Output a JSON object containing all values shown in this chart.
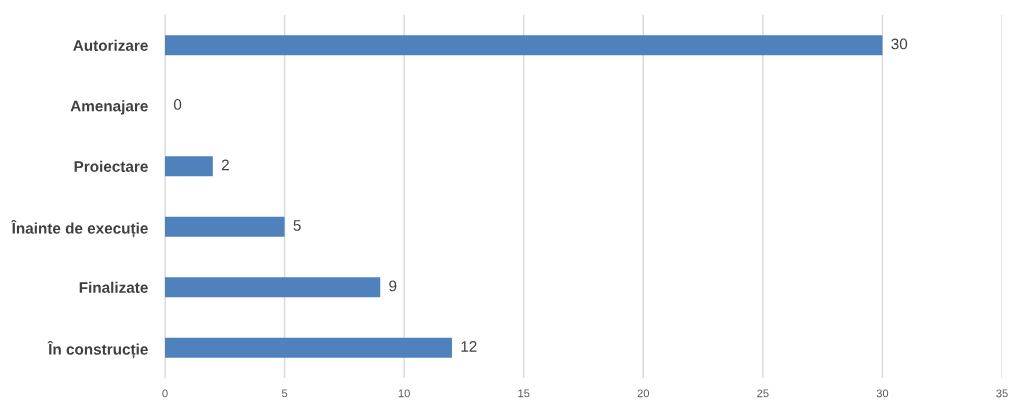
{
  "chart_data": {
    "type": "bar",
    "orientation": "horizontal",
    "categories": [
      "Autorizare",
      "Amenajare",
      "Proiectare",
      "Înainte de execuție",
      "Finalizate",
      "În construcție"
    ],
    "values": [
      30,
      0,
      2,
      5,
      9,
      12
    ],
    "color": "#4f81bd",
    "xlim": [
      0,
      35
    ],
    "xticks": [
      0,
      5,
      10,
      15,
      20,
      25,
      30,
      35
    ],
    "grid": "x",
    "data_labels": true
  }
}
